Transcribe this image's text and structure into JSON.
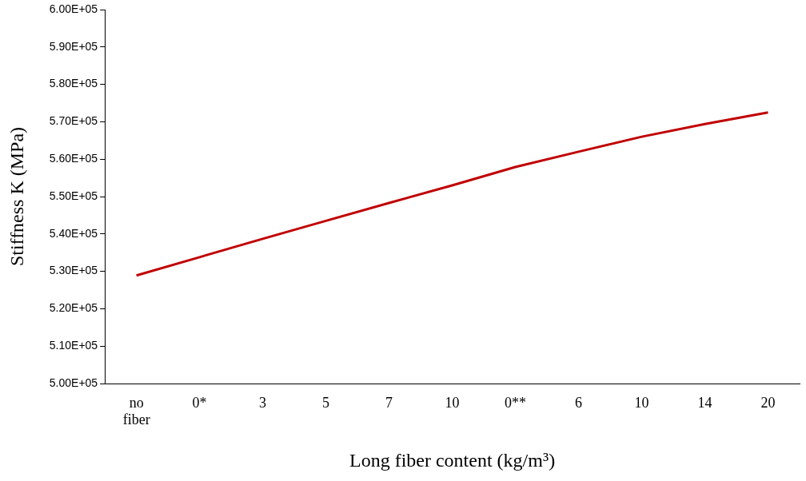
{
  "chart_data": {
    "type": "line",
    "xlabel": "Long fiber content (kg/m³)",
    "ylabel": "Stiffness K (MPa)",
    "categories": [
      "no fiber",
      "0*",
      "3",
      "5",
      "7",
      "10",
      "0**",
      "6",
      "10",
      "14",
      "20"
    ],
    "series": [
      {
        "color": "#c00000",
        "values": [
          528900,
          533800,
          538700,
          543500,
          548300,
          553000,
          557900,
          562000,
          566000,
          569400,
          572500
        ]
      }
    ],
    "ylim": [
      500000,
      600000
    ],
    "yticks": [
      {
        "value": 500000,
        "label": "5.00E+05"
      },
      {
        "value": 510000,
        "label": "5.10E+05"
      },
      {
        "value": 520000,
        "label": "5.20E+05"
      },
      {
        "value": 530000,
        "label": "5.30E+05"
      },
      {
        "value": 540000,
        "label": "5.40E+05"
      },
      {
        "value": 550000,
        "label": "5.50E+05"
      },
      {
        "value": 560000,
        "label": "5.60E+05"
      },
      {
        "value": 570000,
        "label": "5.70E+05"
      },
      {
        "value": 580000,
        "label": "5.80E+05"
      },
      {
        "value": 590000,
        "label": "5.90E+05"
      },
      {
        "value": 600000,
        "label": "6.00E+05"
      }
    ],
    "grid": false,
    "legend": false,
    "marker": "none",
    "line_style": "solid"
  }
}
